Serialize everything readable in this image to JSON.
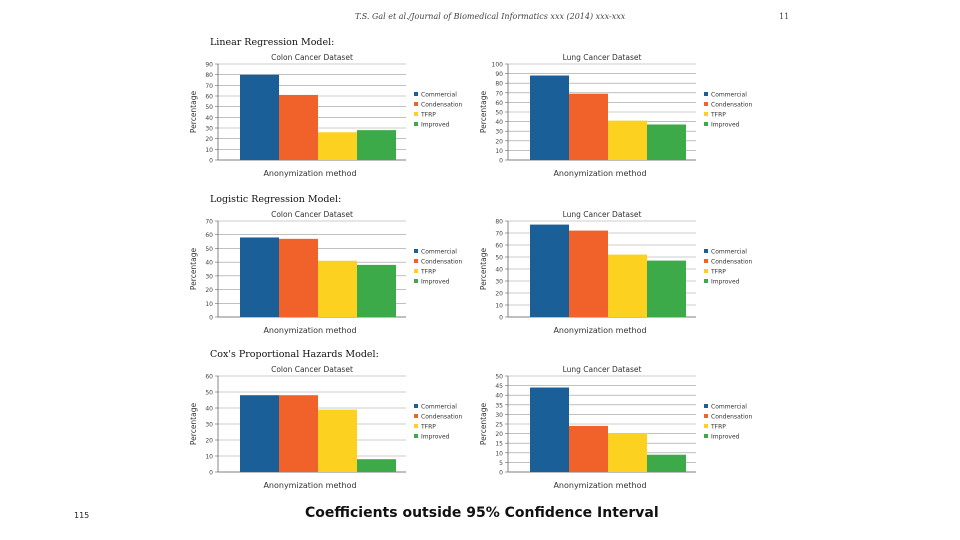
{
  "page": {
    "header": "T.S. Gal et al./Journal of Biomedical Informatics xxx (2014) xxx-xxx",
    "page_number": "11",
    "slide_number": "115",
    "caption": "Coefficients outside 95% Confidence Interval",
    "models": [
      "Linear Regression Model:",
      "Logistic Regression Model:",
      "Cox's Proportional Hazards Model:"
    ]
  },
  "colors": {
    "Commercial": "#1a5f98",
    "Condensation": "#f0622a",
    "TFRP": "#fcd11f",
    "Improved": "#3daa4a"
  },
  "chart_data": [
    {
      "type": "bar",
      "title": "Colon Cancer Dataset",
      "xlabel": "Anonymization method",
      "ylabel": "Percentage",
      "ylim": [
        0,
        90
      ],
      "yticks": [
        0,
        10,
        20,
        30,
        40,
        50,
        60,
        70,
        80,
        90
      ],
      "categories": [
        "Commercial",
        "Condensation",
        "TFRP",
        "Improved"
      ],
      "values": [
        80,
        61,
        26,
        28
      ],
      "legend": [
        "Commercial",
        "Condensation",
        "TFRP",
        "Improved"
      ],
      "grid": true,
      "legend_position": "right"
    },
    {
      "type": "bar",
      "title": "Lung Cancer Dataset",
      "xlabel": "Anonymization method",
      "ylabel": "Percentage",
      "ylim": [
        0,
        100
      ],
      "yticks": [
        0,
        10,
        20,
        30,
        40,
        50,
        60,
        70,
        80,
        90,
        100
      ],
      "categories": [
        "Commercial",
        "Condensation",
        "TFRP",
        "Improved"
      ],
      "values": [
        88,
        69,
        41,
        37
      ],
      "legend": [
        "Commercial",
        "Condensation",
        "TFRP",
        "Improved"
      ],
      "grid": true,
      "legend_position": "right"
    },
    {
      "type": "bar",
      "title": "Colon Cancer Dataset",
      "xlabel": "Anonymization method",
      "ylabel": "Percentage",
      "ylim": [
        0,
        70
      ],
      "yticks": [
        0,
        10,
        20,
        30,
        40,
        50,
        60,
        70
      ],
      "categories": [
        "Commercial",
        "Condensation",
        "TFRP",
        "Improved"
      ],
      "values": [
        58,
        57,
        41,
        38
      ],
      "legend": [
        "Commercial",
        "Condensation",
        "TFRP",
        "Improved"
      ],
      "grid": true,
      "legend_position": "right"
    },
    {
      "type": "bar",
      "title": "Lung Cancer Dataset",
      "xlabel": "Anonymization method",
      "ylabel": "Percentage",
      "ylim": [
        0,
        80
      ],
      "yticks": [
        0,
        10,
        20,
        30,
        40,
        50,
        60,
        70,
        80
      ],
      "categories": [
        "Commercial",
        "Condensation",
        "TFRP",
        "Improved"
      ],
      "values": [
        77,
        72,
        52,
        47
      ],
      "legend": [
        "Commercial",
        "Condensation",
        "TFRP",
        "Improved"
      ],
      "grid": true,
      "legend_position": "right"
    },
    {
      "type": "bar",
      "title": "Colon Cancer Dataset",
      "xlabel": "Anonymization method",
      "ylabel": "Percentage",
      "ylim": [
        0,
        60
      ],
      "yticks": [
        0,
        10,
        20,
        30,
        40,
        50,
        60
      ],
      "categories": [
        "Commercial",
        "Condensation",
        "TFRP",
        "Improved"
      ],
      "values": [
        48,
        48,
        39,
        8
      ],
      "legend": [
        "Commercial",
        "Condensation",
        "TFRP",
        "Improved"
      ],
      "grid": true,
      "legend_position": "right"
    },
    {
      "type": "bar",
      "title": "Lung Cancer Dataset",
      "xlabel": "Anonymization method",
      "ylabel": "Percentage",
      "ylim": [
        0,
        50
      ],
      "yticks": [
        0,
        5,
        10,
        15,
        20,
        25,
        30,
        35,
        40,
        45,
        50
      ],
      "categories": [
        "Commercial",
        "Condensation",
        "TFRP",
        "Improved"
      ],
      "values": [
        44,
        24,
        20,
        9
      ],
      "legend": [
        "Commercial",
        "Condensation",
        "TFRP",
        "Improved"
      ],
      "grid": true,
      "legend_position": "right"
    }
  ]
}
